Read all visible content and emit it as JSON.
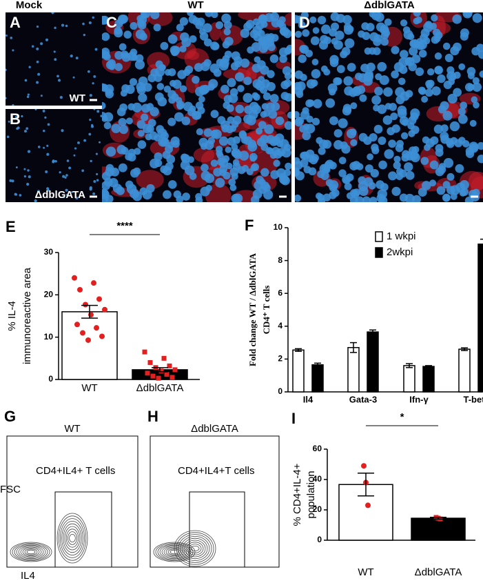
{
  "image_panels": {
    "headers": [
      "Mock",
      "WT",
      "ΔdblGATA"
    ],
    "panels": [
      {
        "letter": "A",
        "label": "WT"
      },
      {
        "letter": "B",
        "label": "ΔdblGATA"
      },
      {
        "letter": "C"
      },
      {
        "letter": "D"
      }
    ]
  },
  "flow_panels": [
    {
      "letter": "G",
      "title": "WT",
      "gate": "CD4+IL4+ T cells",
      "y_label": "FSC",
      "x_label": "IL4"
    },
    {
      "letter": "H",
      "title": "ΔdblGATA",
      "gate": "CD4+IL4+T cells"
    }
  ],
  "chart_data": [
    {
      "type": "bar",
      "letter": "E",
      "ylabel": [
        "% IL-4",
        "immunoreactive area"
      ],
      "categories": [
        "WT",
        "ΔdblGATA"
      ],
      "values": [
        16,
        2.3
      ],
      "errors": [
        1.5,
        0.5
      ],
      "colors": [
        "#ffffff",
        "#000000"
      ],
      "point_color": "#e3201f",
      "points": [
        [
          24,
          22.8,
          21.2,
          19,
          17.7,
          16.5,
          15.3,
          13,
          12.2,
          11,
          10.2,
          9.3
        ],
        [
          6.5,
          5,
          4,
          3.2,
          2.8,
          2.3,
          2,
          1.5,
          1.2,
          0.8,
          0.5,
          0.3
        ]
      ],
      "significance": "****",
      "ylim": [
        0,
        30
      ],
      "yticks": [
        0,
        10,
        20,
        30
      ]
    },
    {
      "type": "bar",
      "letter": "F",
      "ylabel": [
        "Fold change WT / ΔdblGATA",
        "CD4⁺ T cells"
      ],
      "categories": [
        "Il4",
        "Gata-3",
        "Ifn-γ",
        "T-bet"
      ],
      "series": [
        {
          "name": "1 wkpi",
          "color": "#ffffff",
          "values": [
            2.55,
            2.7,
            1.6,
            2.6
          ],
          "errors": [
            0.08,
            0.3,
            0.12,
            0.08
          ]
        },
        {
          "name": "2wkpi",
          "color": "#000000",
          "values": [
            1.65,
            3.65,
            1.55,
            9.0
          ],
          "errors": [
            0.1,
            0.12,
            0.05,
            0.3
          ]
        }
      ],
      "legend": "upper right",
      "ylim": [
        0,
        10
      ],
      "yticks": [
        0,
        2,
        4,
        6,
        8,
        10
      ]
    },
    {
      "type": "bar",
      "letter": "I",
      "ylabel": [
        "% CD4+IL-4+",
        "population"
      ],
      "categories": [
        "WT",
        "ΔdblGATA"
      ],
      "values": [
        36.7,
        14.5
      ],
      "errors": [
        7.5,
        0.6
      ],
      "colors": [
        "#ffffff",
        "#000000"
      ],
      "point_color": "#e3201f",
      "points": [
        [
          49,
          38,
          23
        ],
        [
          15,
          14.5,
          14
        ]
      ],
      "significance": "*",
      "ylim": [
        0,
        60
      ],
      "yticks": [
        0,
        20,
        40,
        60
      ]
    }
  ]
}
